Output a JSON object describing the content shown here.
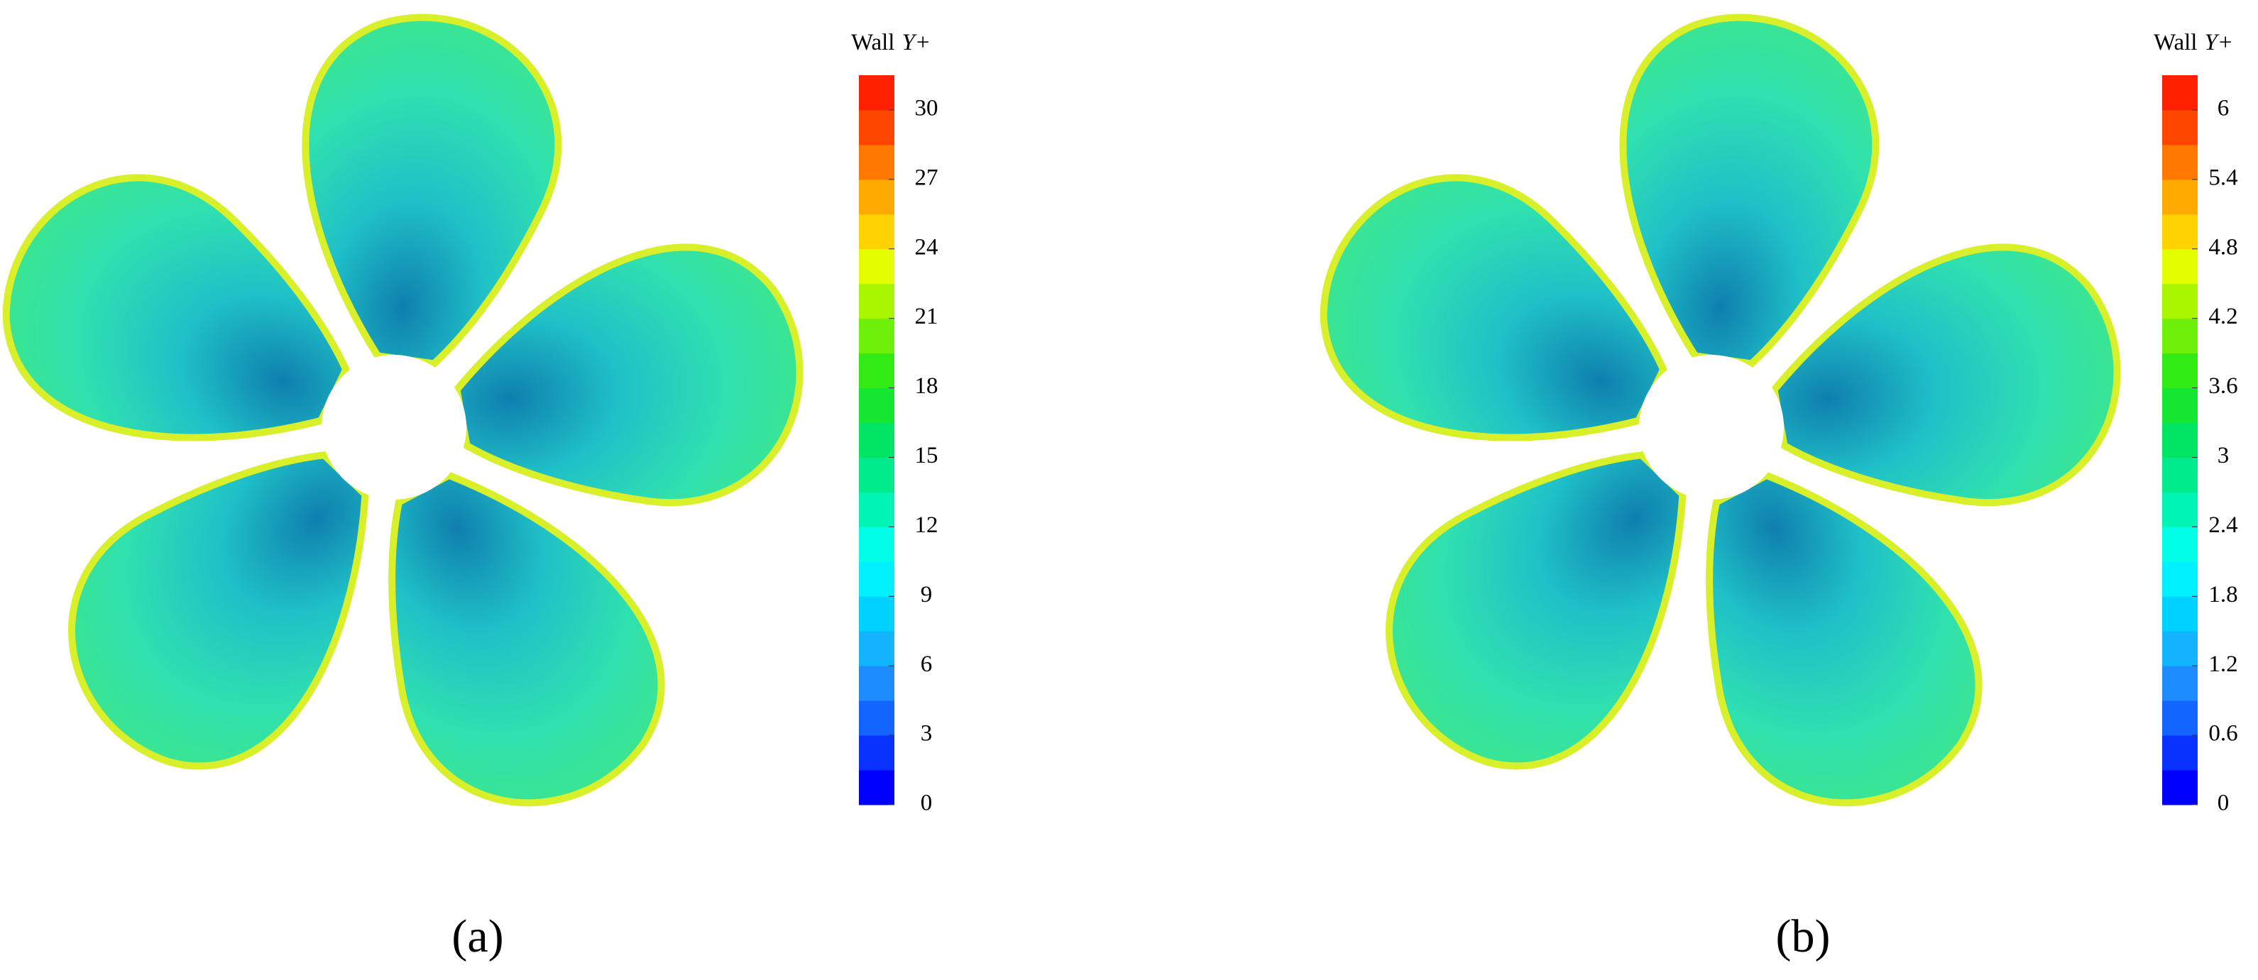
{
  "panels": [
    {
      "caption": "(a)",
      "colorbar": {
        "label": "Wall",
        "symbol": "Y+",
        "lim": [
          0,
          31.5
        ],
        "ticks": [
          0,
          3,
          6,
          9,
          12,
          15,
          18,
          21,
          24,
          27,
          30
        ],
        "colors": [
          "#0000ff",
          "#0a32ff",
          "#1464ff",
          "#1e8cff",
          "#14b4ff",
          "#00d2ff",
          "#00f0ff",
          "#00ffe6",
          "#00f5b4",
          "#00eb8c",
          "#00e664",
          "#14e632",
          "#32eb14",
          "#6ef00a",
          "#aaf500",
          "#e6ff00",
          "#ffd200",
          "#ffaa00",
          "#ff7800",
          "#ff4600",
          "#ff2000"
        ]
      }
    },
    {
      "caption": "(b)",
      "colorbar": {
        "label": "Wall",
        "symbol": "Y+",
        "lim": [
          0,
          6.3
        ],
        "ticks": [
          0,
          0.6,
          1.2,
          1.8,
          2.4,
          3,
          3.6,
          4.2,
          4.8,
          5.4,
          6
        ],
        "colors": [
          "#0000ff",
          "#0a32ff",
          "#1464ff",
          "#1e8cff",
          "#14b4ff",
          "#00d2ff",
          "#00f0ff",
          "#00ffe6",
          "#00f5b4",
          "#00eb8c",
          "#00e664",
          "#14e632",
          "#32eb14",
          "#6ef00a",
          "#aaf500",
          "#e6ff00",
          "#ffd200",
          "#ffaa00",
          "#ff7800",
          "#ff4600",
          "#ff2000"
        ]
      }
    }
  ]
}
